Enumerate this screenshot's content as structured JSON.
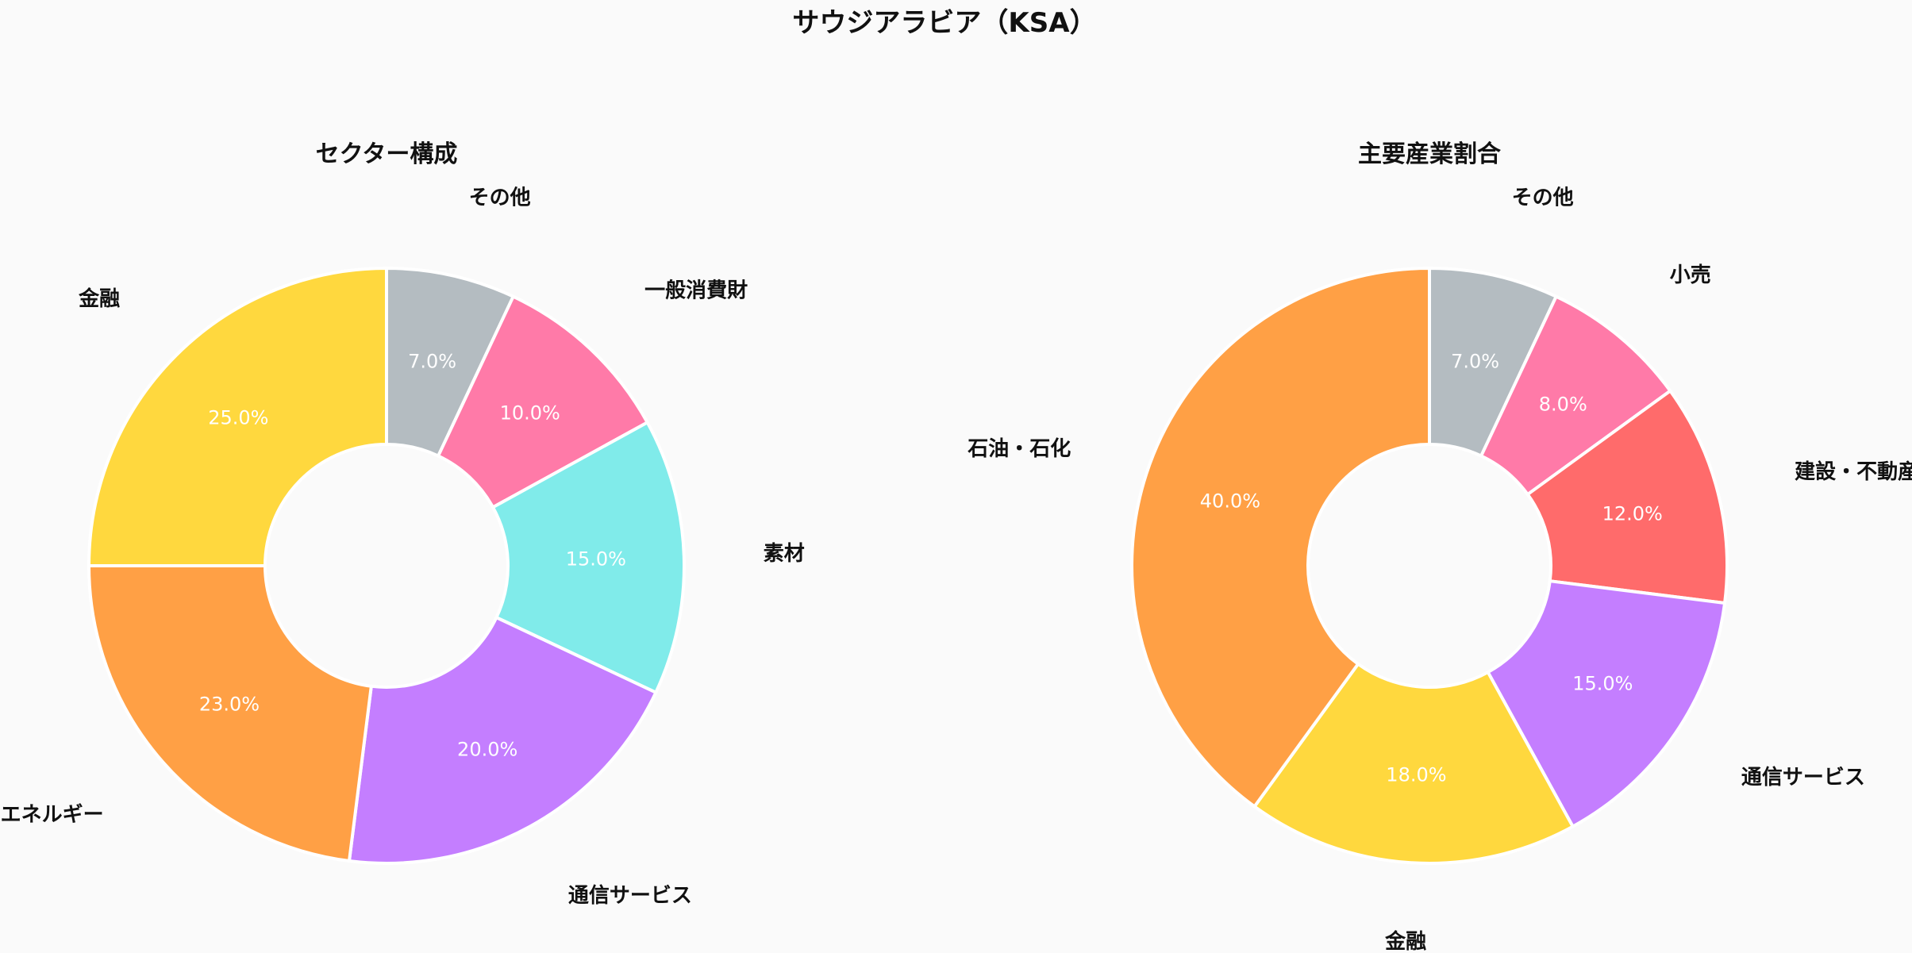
{
  "page": {
    "title": "サウジアラビア（KSA）",
    "background": "#fafafa"
  },
  "chart_data": [
    {
      "type": "pie",
      "style": "donut",
      "title": "セクター構成",
      "start_angle_deg": 90,
      "direction": "clockwise_from_top_reading_order",
      "categories": [
        "その他",
        "一般消費財",
        "素材",
        "通信サービス",
        "エネルギー",
        "金融"
      ],
      "values": [
        7.0,
        10.0,
        15.0,
        20.0,
        23.0,
        25.0
      ],
      "value_labels": [
        "7.0%",
        "10.0%",
        "15.0%",
        "20.0%",
        "23.0%",
        "25.0%"
      ],
      "colors": [
        "#b4bcc1",
        "#ff7aa8",
        "#80ebea",
        "#c47eff",
        "#ffa045",
        "#ffd83e"
      ]
    },
    {
      "type": "pie",
      "style": "donut",
      "title": "主要産業割合",
      "start_angle_deg": 90,
      "direction": "clockwise_from_top_reading_order",
      "categories": [
        "その他",
        "小売",
        "建設・不動産",
        "通信サービス",
        "金融",
        "石油・石化"
      ],
      "values": [
        7.0,
        8.0,
        12.0,
        15.0,
        18.0,
        40.0
      ],
      "value_labels": [
        "7.0%",
        "8.0%",
        "12.0%",
        "15.0%",
        "18.0%",
        "40.0%"
      ],
      "colors": [
        "#b4bcc1",
        "#ff7aa8",
        "#ff6b6b",
        "#c47eff",
        "#ffd83e",
        "#ffa045"
      ]
    }
  ]
}
